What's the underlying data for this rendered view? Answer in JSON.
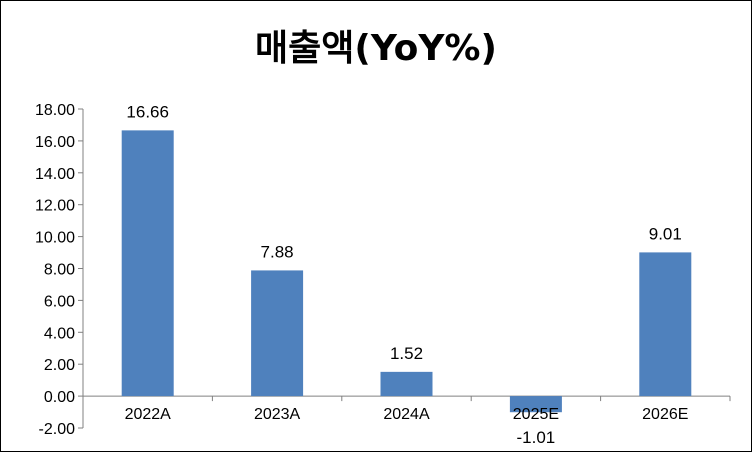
{
  "chart_data": {
    "type": "bar",
    "title": "매출액(YoY%)",
    "categories": [
      "2022A",
      "2023A",
      "2024A",
      "2025E",
      "2026E"
    ],
    "values": [
      16.66,
      7.88,
      1.52,
      -1.01,
      9.01
    ],
    "data_labels": [
      "16.66",
      "7.88",
      "1.52",
      "-1.01",
      "9.01"
    ],
    "y_ticks": [
      "-2.00",
      "0.00",
      "2.00",
      "4.00",
      "6.00",
      "8.00",
      "10.00",
      "12.00",
      "14.00",
      "16.00",
      "18.00"
    ],
    "ylim": [
      -2,
      18
    ],
    "bar_color": "#4F81BD",
    "grid": false,
    "legend": false
  }
}
